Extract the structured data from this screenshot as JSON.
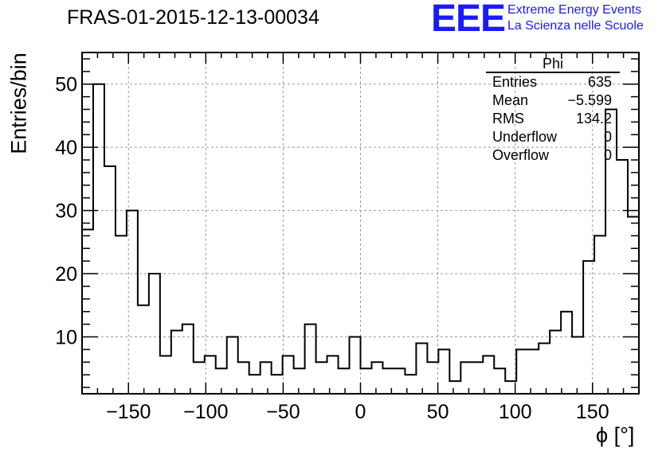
{
  "title": "FRAS-01-2015-12-13-00034",
  "logo": {
    "mark": "EEE",
    "line1": "Extreme Energy Events",
    "line2": "La Scienza nelle Scuole",
    "color": "#1a1aff"
  },
  "stats": {
    "header": "Phi",
    "rows": [
      {
        "label": "Entries",
        "value": "635"
      },
      {
        "label": "Mean",
        "value": "−5.599"
      },
      {
        "label": "RMS",
        "value": "134.2"
      },
      {
        "label": "Underflow",
        "value": "0"
      },
      {
        "label": "Overflow",
        "value": "0"
      }
    ]
  },
  "chart_data": {
    "type": "bar",
    "style": "step-histogram",
    "title": "FRAS-01-2015-12-13-00034",
    "xlabel": "ϕ [°]",
    "ylabel": "Entries/bin",
    "xlim": [
      -180,
      180
    ],
    "ylim": [
      1,
      55
    ],
    "bin_width": 7.2,
    "values": [
      27,
      50,
      37,
      26,
      30,
      15,
      20,
      7,
      11,
      12,
      6,
      7,
      5,
      10,
      6,
      4,
      6,
      4,
      7,
      5,
      12,
      6,
      7,
      5,
      10,
      5,
      6,
      5,
      5,
      4,
      9,
      6,
      8,
      3,
      6,
      6,
      7,
      5,
      3,
      8,
      8,
      9,
      11,
      14,
      10,
      22,
      26,
      46,
      38,
      29
    ],
    "xticks": [
      -150,
      -100,
      -50,
      0,
      50,
      100,
      150
    ],
    "xtick_labels": [
      "−150",
      "−100",
      "−50",
      "0",
      "50",
      "100",
      "150"
    ],
    "yticks": [
      10,
      20,
      30,
      40,
      50
    ],
    "ytick_labels": [
      "10",
      "20",
      "30",
      "40",
      "50"
    ],
    "grid": true,
    "legend": "top-right stats box"
  }
}
